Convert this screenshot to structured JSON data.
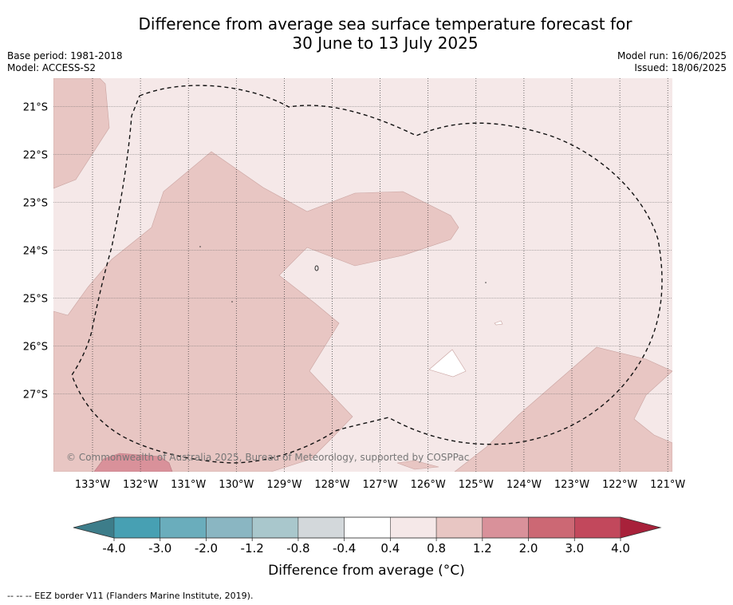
{
  "title_line1": "Difference from average sea surface temperature forecast for",
  "title_line2": "30 June to 13 July 2025",
  "base_period": "Base period: 1981-2018",
  "model": "Model: ACCESS-S2",
  "model_run": "Model run: 16/06/2025",
  "issued": "Issued: 18/06/2025",
  "copyright": "© Commonwealth of Australia 2025, Bureau of Meteorology, supported by COSPPac",
  "lat_labels": [
    "21°S",
    "22°S",
    "23°S",
    "24°S",
    "25°S",
    "26°S",
    "27°S"
  ],
  "lon_labels": [
    "133°W",
    "132°W",
    "131°W",
    "130°W",
    "129°W",
    "128°W",
    "127°W",
    "126°W",
    "125°W",
    "124°W",
    "123°W",
    "122°W",
    "121°W"
  ],
  "colorbar": {
    "ticks": [
      "-4.0",
      "-3.0",
      "-2.0",
      "-1.2",
      "-0.8",
      "-0.4",
      "0.4",
      "0.8",
      "1.2",
      "2.0",
      "3.0",
      "4.0"
    ],
    "under_color": "#3d7d8a",
    "over_color": "#a8213a",
    "colors": [
      "#47a0b3",
      "#6aadbc",
      "#8ab6c2",
      "#a9c7cc",
      "#d3d8db",
      "#ffffff",
      "#f5e8e8",
      "#e8c6c3",
      "#d9919a",
      "#cc6874",
      "#c2485c"
    ],
    "label": "Difference from average (°C)"
  },
  "footnote": "--  --  -- EEZ border V11 (Flanders Marine Institute, 2019)."
}
